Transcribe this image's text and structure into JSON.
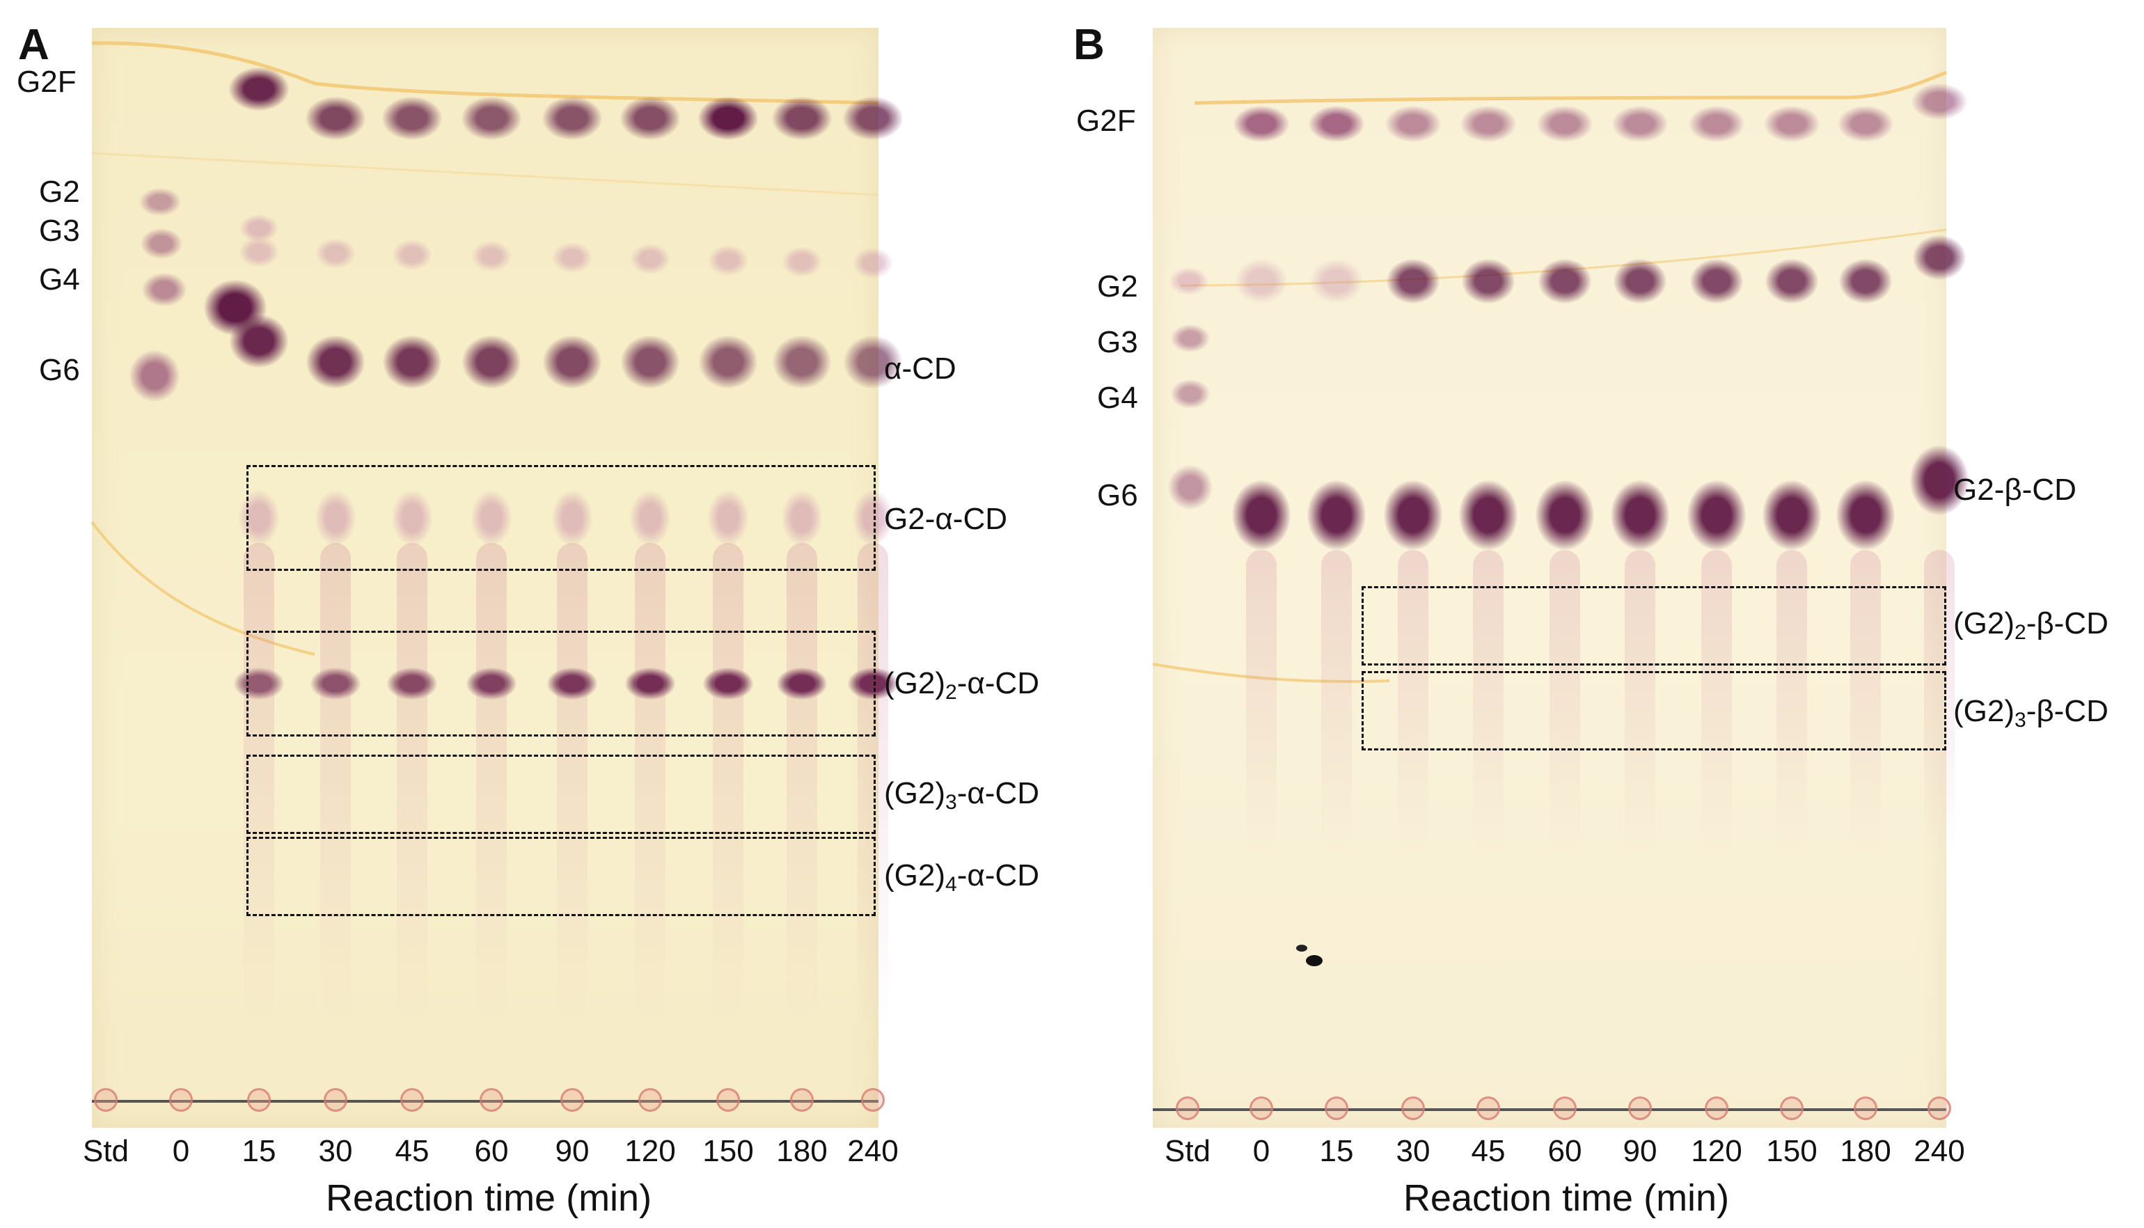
{
  "panel_a": {
    "letter": "A",
    "left_labels": [
      "G2F",
      "G2",
      "G3",
      "G4",
      "G6"
    ],
    "right_labels": {
      "acd": "α-CD",
      "g2acd": "G2-α-CD",
      "g2_2_pre": "(G2)",
      "g2_2_sub": "2",
      "g2_2_post": "-α-CD",
      "g2_3_pre": "(G2)",
      "g2_3_sub": "3",
      "g2_3_post": "-α-CD",
      "g2_4_pre": "(G2)",
      "g2_4_sub": "4",
      "g2_4_post": "-α-CD"
    },
    "lanes": [
      "Std",
      "0",
      "15",
      "30",
      "45",
      "60",
      "90",
      "120",
      "150",
      "180",
      "240"
    ],
    "axis_title": "Reaction time (min)"
  },
  "panel_b": {
    "letter": "B",
    "left_labels": [
      "G2F",
      "G2",
      "G3",
      "G4",
      "G6"
    ],
    "right_labels": {
      "g2bcd": "G2-β-CD",
      "g2_2_pre": "(G2)",
      "g2_2_sub": "2",
      "g2_2_post": "-β-CD",
      "g2_3_pre": "(G2)",
      "g2_3_sub": "3",
      "g2_3_post": "-β-CD"
    },
    "lanes": [
      "Std",
      "0",
      "15",
      "30",
      "45",
      "60",
      "90",
      "120",
      "150",
      "180",
      "240"
    ],
    "axis_title": "Reaction time (min)"
  },
  "colors": {
    "plate": "#f7eec9",
    "spot_dark": "#5a1240",
    "spot_mid": "#8a3a6a",
    "spot_light": "#c88aa8",
    "solvent_front": "#f2c46a"
  }
}
